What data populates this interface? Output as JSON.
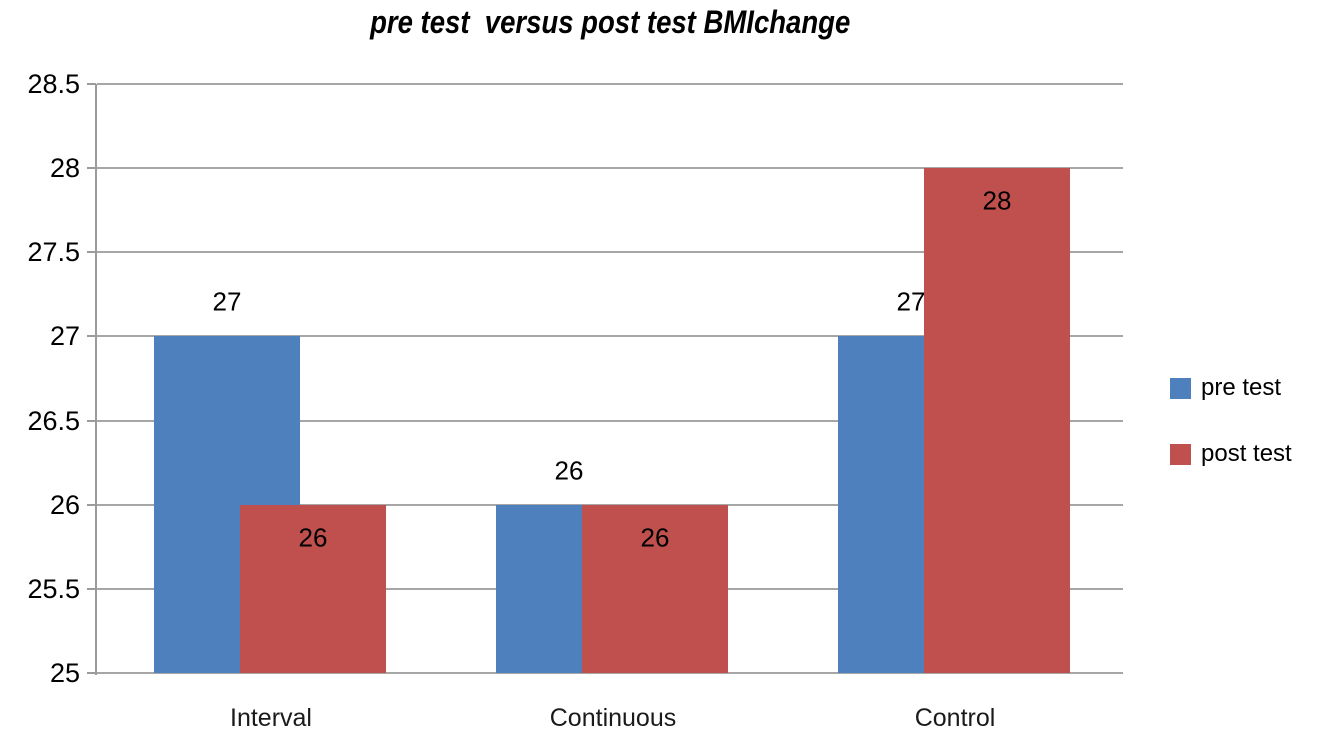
{
  "chart_data": {
    "type": "bar",
    "title": "pre test  versus post test BMIchange",
    "categories": [
      "Interval",
      "Continuous",
      "Control"
    ],
    "series": [
      {
        "name": "pre test",
        "color": "#4d80bd",
        "values": [
          27,
          26,
          27
        ],
        "data_label_position": "outside-end"
      },
      {
        "name": "post test",
        "color": "#bf504d",
        "values": [
          26,
          26,
          28
        ],
        "data_label_position": "inside-end"
      }
    ],
    "data_labels": {
      "pre_test": [
        "27",
        "26",
        "27"
      ],
      "post_test": [
        "26",
        "26",
        "28"
      ]
    },
    "xlabel": "",
    "ylabel": "",
    "ylim": [
      25,
      28.5
    ],
    "ytick_step": 0.5,
    "ytick_labels": [
      "25",
      "25.5",
      "26",
      "26.5",
      "27",
      "27.5",
      "28",
      "28.5"
    ],
    "grid": true,
    "gridline_color": "#a6a6a6",
    "axis_color": "#9b9b9b",
    "text_color": "#000000",
    "background_color": "#ffffff",
    "legend_position": "right"
  }
}
